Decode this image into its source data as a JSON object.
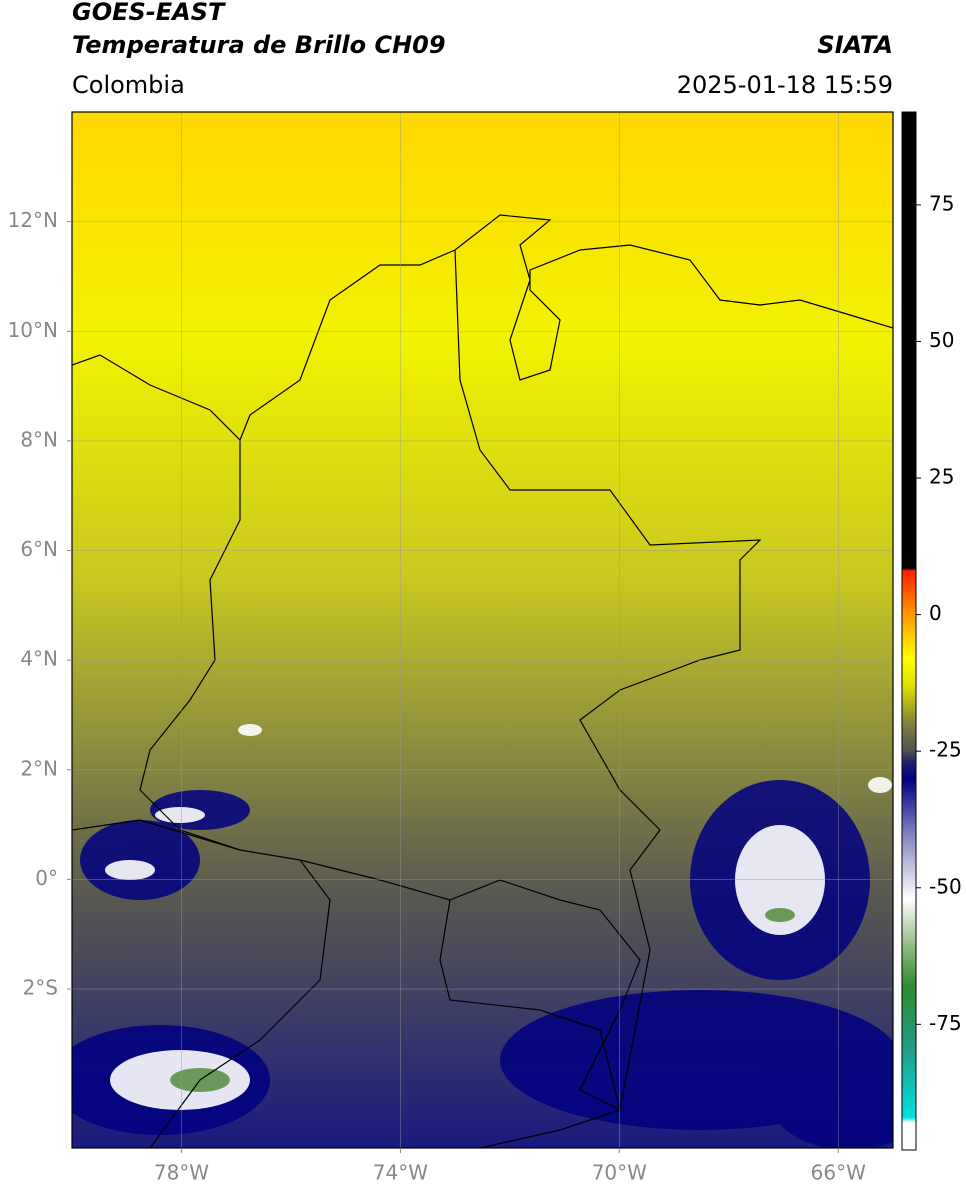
{
  "header": {
    "title": "GOES-EAST",
    "subtitle": "Temperatura de Brillo CH09",
    "source": "SIATA",
    "region": "Colombia",
    "datetime": "2025-01-18 15:59"
  },
  "map": {
    "xlim": [
      -80,
      -65
    ],
    "ylim": [
      -4.9,
      14
    ],
    "grid": true,
    "xticks": [
      {
        "value": -78,
        "label": "78°W"
      },
      {
        "value": -74,
        "label": "74°W"
      },
      {
        "value": -70,
        "label": "70°W"
      },
      {
        "value": -66,
        "label": "66°W"
      }
    ],
    "yticks": [
      {
        "value": 12,
        "label": "12°N"
      },
      {
        "value": 10,
        "label": "10°N"
      },
      {
        "value": 8,
        "label": "8°N"
      },
      {
        "value": 6,
        "label": "6°N"
      },
      {
        "value": 4,
        "label": "4°N"
      },
      {
        "value": 2,
        "label": "2°N"
      },
      {
        "value": 0,
        "label": "0°"
      },
      {
        "value": -2,
        "label": "2°S"
      }
    ]
  },
  "colorbar": {
    "lim": [
      -98,
      92
    ],
    "ticks": [
      75,
      50,
      25,
      0,
      -25,
      -50,
      -75
    ],
    "stops": [
      [
        -98,
        "#ffffff"
      ],
      [
        -93,
        "#ffffff"
      ],
      [
        -92,
        "#00e0e0"
      ],
      [
        -80,
        "#20a08c"
      ],
      [
        -68,
        "#2e8b2e"
      ],
      [
        -60,
        "#98c088"
      ],
      [
        -52,
        "#ffffff"
      ],
      [
        -40,
        "#8080c0"
      ],
      [
        -30,
        "#000080"
      ],
      [
        -27,
        "#202070"
      ],
      [
        -25,
        "#505050"
      ],
      [
        -20,
        "#808040"
      ],
      [
        -13,
        "#e0e000"
      ],
      [
        -8,
        "#ffff00"
      ],
      [
        0,
        "#ff9900"
      ],
      [
        8,
        "#ff2000"
      ],
      [
        8.5,
        "#000000"
      ],
      [
        92,
        "#000000"
      ]
    ]
  }
}
